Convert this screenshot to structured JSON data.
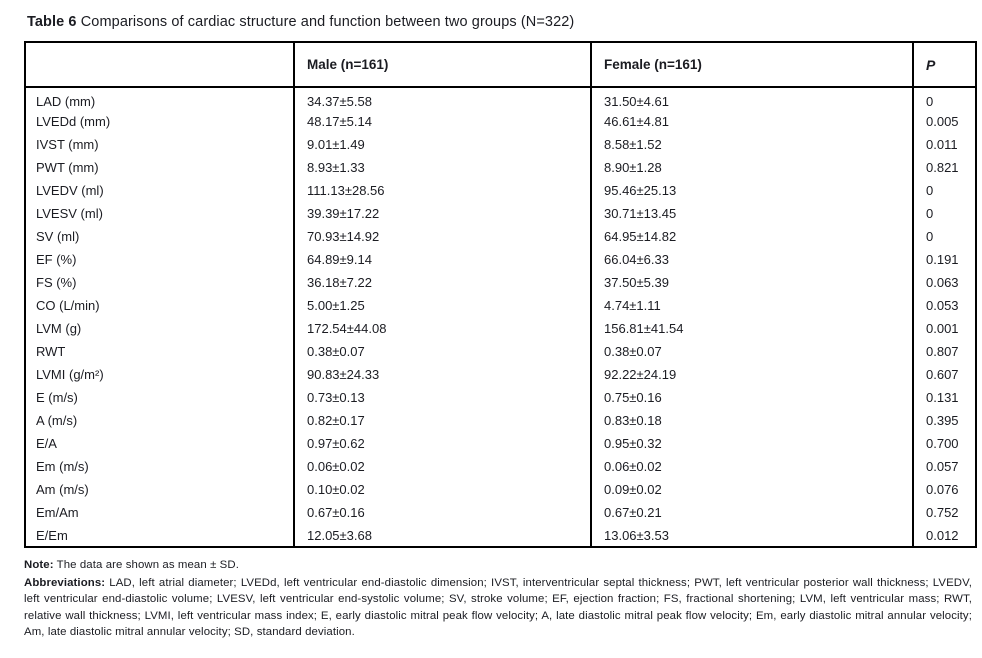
{
  "page": {
    "background": "#ffffff",
    "text_color": "#1b1c22",
    "border_color": "#000000"
  },
  "title": {
    "label": "Table 6",
    "text": "Comparisons of cardiac structure and function between two groups (N=322)"
  },
  "table": {
    "columns": [
      "",
      "Male (n=161)",
      "Female (n=161)",
      "P"
    ],
    "rows": [
      {
        "label": "LAD (mm)",
        "male": "34.37±5.58",
        "female": "31.50±4.61",
        "p": "0"
      },
      {
        "label": "LVEDd (mm)",
        "male": "48.17±5.14",
        "female": "46.61±4.81",
        "p": "0.005"
      },
      {
        "label": "IVST (mm)",
        "male": "9.01±1.49",
        "female": "8.58±1.52",
        "p": "0.011"
      },
      {
        "label": "PWT (mm)",
        "male": "8.93±1.33",
        "female": "8.90±1.28",
        "p": "0.821"
      },
      {
        "label": "LVEDV (ml)",
        "male": "111.13±28.56",
        "female": "95.46±25.13",
        "p": "0"
      },
      {
        "label": "LVESV (ml)",
        "male": "39.39±17.22",
        "female": "30.71±13.45",
        "p": "0"
      },
      {
        "label": "SV (ml)",
        "male": "70.93±14.92",
        "female": "64.95±14.82",
        "p": "0"
      },
      {
        "label": "EF (%)",
        "male": "64.89±9.14",
        "female": "66.04±6.33",
        "p": "0.191"
      },
      {
        "label": "FS (%)",
        "male": "36.18±7.22",
        "female": "37.50±5.39",
        "p": "0.063"
      },
      {
        "label": "CO (L/min)",
        "male": "5.00±1.25",
        "female": "4.74±1.11",
        "p": "0.053"
      },
      {
        "label": "LVM (g)",
        "male": "172.54±44.08",
        "female": "156.81±41.54",
        "p": "0.001"
      },
      {
        "label": "RWT",
        "male": "0.38±0.07",
        "female": "0.38±0.07",
        "p": "0.807"
      },
      {
        "label": "LVMI (g/m²)",
        "male": "90.83±24.33",
        "female": "92.22±24.19",
        "p": "0.607"
      },
      {
        "label": "E (m/s)",
        "male": "0.73±0.13",
        "female": "0.75±0.16",
        "p": "0.131"
      },
      {
        "label": "A (m/s)",
        "male": "0.82±0.17",
        "female": "0.83±0.18",
        "p": "0.395"
      },
      {
        "label": "E/A",
        "male": "0.97±0.62",
        "female": "0.95±0.32",
        "p": "0.700"
      },
      {
        "label": "Em (m/s)",
        "male": "0.06±0.02",
        "female": "0.06±0.02",
        "p": "0.057"
      },
      {
        "label": "Am (m/s)",
        "male": "0.10±0.02",
        "female": "0.09±0.02",
        "p": "0.076"
      },
      {
        "label": "Em/Am",
        "male": "0.67±0.16",
        "female": "0.67±0.21",
        "p": "0.752"
      },
      {
        "label": "E/Em",
        "male": "12.05±3.68",
        "female": "13.06±3.53",
        "p": "0.012"
      }
    ]
  },
  "notes": {
    "note_label": "Note:",
    "note_text": "The data are shown as mean ± SD.",
    "abbr_label": "Abbreviations:",
    "abbr_text": "LAD, left atrial diameter; LVEDd, left ventricular end-diastolic dimension; IVST, interventricular septal thickness; PWT, left ventricular posterior wall thickness; LVEDV, left ventricular end-diastolic volume; LVESV, left ventricular end-systolic volume; SV, stroke volume; EF, ejection fraction; FS, fractional shortening; LVM, left ventricular mass; RWT, relative wall thickness; LVMI, left ventricular mass index; E, early diastolic mitral peak flow velocity; A, late diastolic mitral peak flow velocity; Em, early diastolic mitral annular velocity; Am, late diastolic mitral annular velocity; SD, standard deviation."
  }
}
